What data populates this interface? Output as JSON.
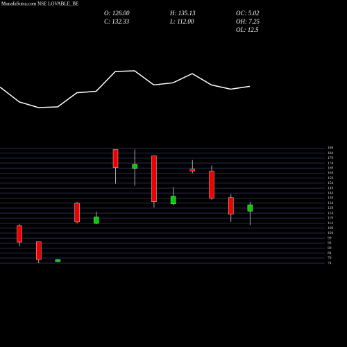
{
  "chart_data": {
    "type": "candlestick",
    "title": "MunafaSutra.com NSE LOVABLE_BE",
    "info": [
      "O: 126.00",
      "C: 132.33",
      "H: 135.13",
      "L: 112.00",
      "OC: 5.02",
      "OH: 7.25",
      "OL: 12.5"
    ],
    "line": {
      "color": "#ffffff",
      "values": [
        35,
        14,
        6,
        7,
        27,
        29,
        57,
        58,
        38,
        41,
        54,
        38,
        32,
        36
      ]
    },
    "open": [
      111.6,
      95.6,
      75.5,
      133.9,
      113.7,
      187.6,
      168.8,
      181.3,
      133.2,
      168,
      166,
      139.5,
      126
    ],
    "high": [
      113,
      95.6,
      78,
      135.3,
      125.6,
      187.6,
      187.6,
      181.3,
      150,
      177.1,
      171.6,
      143,
      135.13
    ],
    "low": [
      90.7,
      74,
      75,
      113.7,
      113,
      153.4,
      151.4,
      129.7,
      131.8,
      163.9,
      137.4,
      115.1,
      112
    ],
    "close": [
      94.9,
      77.5,
      77.6,
      115.1,
      120,
      169.5,
      172.9,
      135.3,
      140.9,
      166,
      138.8,
      122.8,
      132.33
    ],
    "up_color": "#00cc00",
    "down_color": "#ee0000",
    "grid_color": "#2c2c50",
    "ylim": [
      72,
      190
    ],
    "yticks": [
      189,
      184,
      179,
      174,
      169,
      164,
      159,
      154,
      149,
      144,
      139,
      134,
      129,
      124,
      119,
      114,
      109,
      104,
      99,
      94,
      89,
      84,
      79,
      74
    ],
    "grid": true
  }
}
